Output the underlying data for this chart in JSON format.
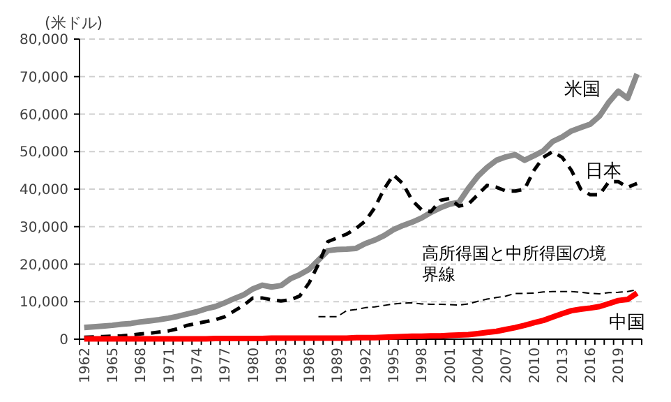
{
  "chart_data": {
    "type": "line",
    "ylabel": "(米ドル)",
    "categories": [
      "1962",
      null,
      null,
      "1965",
      null,
      null,
      "1968",
      null,
      null,
      "1971",
      null,
      null,
      "1974",
      null,
      null,
      "1977",
      null,
      null,
      "1980",
      null,
      null,
      "1983",
      null,
      null,
      "1986",
      null,
      null,
      "1989",
      null,
      null,
      "1992",
      null,
      null,
      "1995",
      null,
      null,
      "1998",
      null,
      null,
      "2001",
      null,
      null,
      "2004",
      null,
      null,
      "2007",
      null,
      null,
      "2010",
      null,
      null,
      "2013",
      null,
      null,
      "2016",
      null,
      null,
      "2019",
      null,
      null
    ],
    "series": [
      {
        "name": "米国",
        "color": "#8c8c8c",
        "line_style": "solid",
        "values": [
          3100,
          3300,
          3500,
          3700,
          4000,
          4200,
          4600,
          4900,
          5200,
          5600,
          6100,
          6700,
          7300,
          8100,
          8700,
          9700,
          10800,
          11800,
          13400,
          14400,
          13900,
          14300,
          16100,
          17200,
          18600,
          21100,
          23600,
          23900,
          24000,
          24200,
          25500,
          26400,
          27600,
          29200,
          30300,
          31200,
          32300,
          33800,
          35000,
          36000,
          36500,
          40200,
          43400,
          45800,
          47700,
          48600,
          49200,
          47700,
          48900,
          50200,
          52700,
          53900,
          55500,
          56400,
          57300,
          59500,
          63200,
          66100,
          64200,
          70700
        ]
      },
      {
        "name": "日本",
        "color": "#000000",
        "line_style": "dashed",
        "values": [
          500,
          600,
          700,
          800,
          900,
          1100,
          1400,
          1600,
          1900,
          2200,
          2800,
          3700,
          4200,
          4700,
          5200,
          6000,
          7500,
          9000,
          11000,
          11000,
          10500,
          10200,
          10500,
          11500,
          15000,
          20000,
          26000,
          27000,
          28000,
          29500,
          31500,
          35000,
          40000,
          43800,
          41500,
          37000,
          34500,
          34000,
          37000,
          37500,
          35500,
          36000,
          38500,
          41000,
          40500,
          39500,
          39500,
          40000,
          45000,
          48500,
          50000,
          48500,
          45000,
          40000,
          38500,
          38500,
          42000,
          42000,
          40500,
          41500
        ]
      },
      {
        "name": "中国",
        "color": "#ff0000",
        "line_style": "solid",
        "values": [
          100,
          100,
          100,
          100,
          100,
          100,
          100,
          100,
          100,
          100,
          100,
          100,
          100,
          100,
          200,
          200,
          200,
          200,
          200,
          200,
          300,
          300,
          300,
          300,
          300,
          300,
          300,
          300,
          300,
          400,
          400,
          400,
          500,
          600,
          700,
          800,
          800,
          900,
          900,
          1000,
          1100,
          1200,
          1500,
          1800,
          2100,
          2600,
          3100,
          3700,
          4400,
          5000,
          5900,
          6800,
          7600,
          8000,
          8300,
          8700,
          9500,
          10300,
          10600,
          12300
        ]
      },
      {
        "name": "高所得国と中所得国の境界線",
        "color": "#000000",
        "line_style": "dashed",
        "values": [
          null,
          null,
          null,
          null,
          null,
          null,
          null,
          null,
          null,
          null,
          null,
          null,
          null,
          null,
          null,
          null,
          null,
          null,
          null,
          null,
          null,
          null,
          null,
          null,
          null,
          6000,
          6000,
          6000,
          7600,
          7900,
          8400,
          8600,
          9000,
          9400,
          9600,
          9700,
          9400,
          9300,
          9300,
          9200,
          9100,
          9400,
          10100,
          10700,
          11100,
          11500,
          12200,
          12200,
          12300,
          12600,
          12700,
          12700,
          12700,
          12500,
          12200,
          12100,
          12400,
          12500,
          12700,
          13200
        ]
      }
    ],
    "ylim": [
      0,
      80000
    ],
    "yticks": [
      0,
      {
        "value": 10000,
        "label": "10,000"
      },
      {
        "value": 20000,
        "label": "20,000"
      },
      {
        "value": 30000,
        "label": "30,000"
      },
      {
        "value": 40000,
        "label": "40,000"
      },
      {
        "value": 50000,
        "label": "50,000"
      },
      {
        "value": 60000,
        "label": "60,000"
      },
      {
        "value": 70000,
        "label": "70,000"
      },
      {
        "value": 80000,
        "label": "80,000"
      }
    ],
    "grid": "y",
    "marker": "none"
  }
}
